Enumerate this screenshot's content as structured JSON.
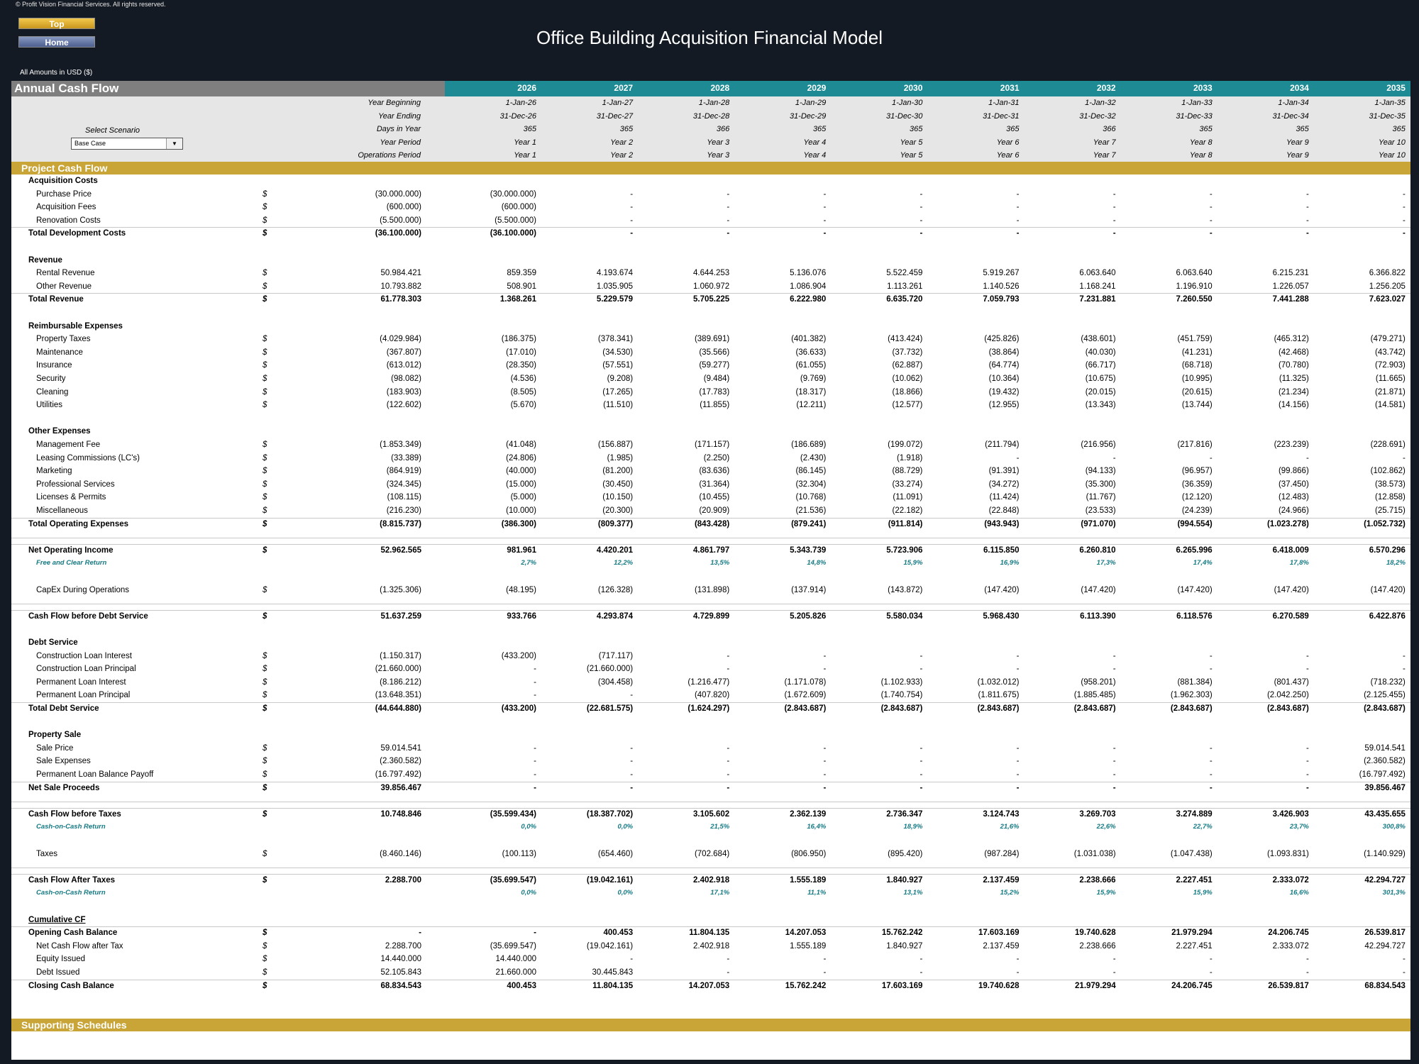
{
  "copyright": "© Profit Vision Financial Services. All rights reserved.",
  "nav": {
    "top": "Top",
    "home": "Home"
  },
  "title": "Office Building Acquisition Financial Model",
  "amounts_note": "All Amounts in  USD ($)",
  "sheet_title": "Annual Cash Flow",
  "years": [
    "2026",
    "2027",
    "2028",
    "2029",
    "2030",
    "2031",
    "2032",
    "2033",
    "2034",
    "2035"
  ],
  "scenario": {
    "label": "Select Scenario",
    "value": "Base Case"
  },
  "header_rows": [
    {
      "label": "Year Beginning",
      "cols": [
        "1-Jan-26",
        "1-Jan-27",
        "1-Jan-28",
        "1-Jan-29",
        "1-Jan-30",
        "1-Jan-31",
        "1-Jan-32",
        "1-Jan-33",
        "1-Jan-34",
        "1-Jan-35"
      ]
    },
    {
      "label": "Year Ending",
      "cols": [
        "31-Dec-26",
        "31-Dec-27",
        "31-Dec-28",
        "31-Dec-29",
        "31-Dec-30",
        "31-Dec-31",
        "31-Dec-32",
        "31-Dec-33",
        "31-Dec-34",
        "31-Dec-35"
      ]
    },
    {
      "label": "Days in Year",
      "cols": [
        "365",
        "365",
        "366",
        "365",
        "365",
        "365",
        "366",
        "365",
        "365",
        "365"
      ]
    },
    {
      "label": "Year Period",
      "cols": [
        "Year 1",
        "Year 2",
        "Year 3",
        "Year 4",
        "Year 5",
        "Year 6",
        "Year 7",
        "Year 8",
        "Year 9",
        "Year 10"
      ]
    },
    {
      "label": "Operations Period",
      "cols": [
        "Year 1",
        "Year 2",
        "Year 3",
        "Year 4",
        "Year 5",
        "Year 6",
        "Year 7",
        "Year 8",
        "Year 9",
        "Year 10"
      ]
    }
  ],
  "section_project": "Project Cash Flow",
  "section_supporting": "Supporting Schedules",
  "rows": [
    {
      "type": "heading",
      "label": "Acquisition Costs"
    },
    {
      "type": "item",
      "label": "Purchase Price",
      "unit": "$",
      "total": "(30.000.000)",
      "cols": [
        "(30.000.000)",
        "-",
        "-",
        "-",
        "-",
        "-",
        "-",
        "-",
        "-",
        "-"
      ]
    },
    {
      "type": "item",
      "label": "Acquisition Fees",
      "unit": "$",
      "total": "(600.000)",
      "cols": [
        "(600.000)",
        "-",
        "-",
        "-",
        "-",
        "-",
        "-",
        "-",
        "-",
        "-"
      ]
    },
    {
      "type": "item",
      "label": "Renovation Costs",
      "unit": "$",
      "total": "(5.500.000)",
      "cols": [
        "(5.500.000)",
        "-",
        "-",
        "-",
        "-",
        "-",
        "-",
        "-",
        "-",
        "-"
      ]
    },
    {
      "type": "total",
      "label": "Total Development Costs",
      "unit": "$",
      "total": "(36.100.000)",
      "cols": [
        "(36.100.000)",
        "-",
        "-",
        "-",
        "-",
        "-",
        "-",
        "-",
        "-",
        "-"
      ]
    },
    {
      "type": "blank"
    },
    {
      "type": "heading",
      "label": "Revenue"
    },
    {
      "type": "item",
      "label": "Rental Revenue",
      "unit": "$",
      "total": "50.984.421",
      "cols": [
        "859.359",
        "4.193.674",
        "4.644.253",
        "5.136.076",
        "5.522.459",
        "5.919.267",
        "6.063.640",
        "6.063.640",
        "6.215.231",
        "6.366.822"
      ]
    },
    {
      "type": "item",
      "label": "Other Revenue",
      "unit": "$",
      "total": "10.793.882",
      "cols": [
        "508.901",
        "1.035.905",
        "1.060.972",
        "1.086.904",
        "1.113.261",
        "1.140.526",
        "1.168.241",
        "1.196.910",
        "1.226.057",
        "1.256.205"
      ]
    },
    {
      "type": "total",
      "label": "Total Revenue",
      "unit": "$",
      "total": "61.778.303",
      "cols": [
        "1.368.261",
        "5.229.579",
        "5.705.225",
        "6.222.980",
        "6.635.720",
        "7.059.793",
        "7.231.881",
        "7.260.550",
        "7.441.288",
        "7.623.027"
      ]
    },
    {
      "type": "blank"
    },
    {
      "type": "heading",
      "label": "Reimbursable Expenses"
    },
    {
      "type": "item",
      "label": "Property Taxes",
      "unit": "$",
      "total": "(4.029.984)",
      "cols": [
        "(186.375)",
        "(378.341)",
        "(389.691)",
        "(401.382)",
        "(413.424)",
        "(425.826)",
        "(438.601)",
        "(451.759)",
        "(465.312)",
        "(479.271)"
      ]
    },
    {
      "type": "item",
      "label": "Maintenance",
      "unit": "$",
      "total": "(367.807)",
      "cols": [
        "(17.010)",
        "(34.530)",
        "(35.566)",
        "(36.633)",
        "(37.732)",
        "(38.864)",
        "(40.030)",
        "(41.231)",
        "(42.468)",
        "(43.742)"
      ]
    },
    {
      "type": "item",
      "label": "Insurance",
      "unit": "$",
      "total": "(613.012)",
      "cols": [
        "(28.350)",
        "(57.551)",
        "(59.277)",
        "(61.055)",
        "(62.887)",
        "(64.774)",
        "(66.717)",
        "(68.718)",
        "(70.780)",
        "(72.903)"
      ]
    },
    {
      "type": "item",
      "label": "Security",
      "unit": "$",
      "total": "(98.082)",
      "cols": [
        "(4.536)",
        "(9.208)",
        "(9.484)",
        "(9.769)",
        "(10.062)",
        "(10.364)",
        "(10.675)",
        "(10.995)",
        "(11.325)",
        "(11.665)"
      ]
    },
    {
      "type": "item",
      "label": "Cleaning",
      "unit": "$",
      "total": "(183.903)",
      "cols": [
        "(8.505)",
        "(17.265)",
        "(17.783)",
        "(18.317)",
        "(18.866)",
        "(19.432)",
        "(20.015)",
        "(20.615)",
        "(21.234)",
        "(21.871)"
      ]
    },
    {
      "type": "item",
      "label": "Utilities",
      "unit": "$",
      "total": "(122.602)",
      "cols": [
        "(5.670)",
        "(11.510)",
        "(11.855)",
        "(12.211)",
        "(12.577)",
        "(12.955)",
        "(13.343)",
        "(13.744)",
        "(14.156)",
        "(14.581)"
      ]
    },
    {
      "type": "blank"
    },
    {
      "type": "heading",
      "label": "Other Expenses"
    },
    {
      "type": "item",
      "label": "Management Fee",
      "unit": "$",
      "total": "(1.853.349)",
      "cols": [
        "(41.048)",
        "(156.887)",
        "(171.157)",
        "(186.689)",
        "(199.072)",
        "(211.794)",
        "(216.956)",
        "(217.816)",
        "(223.239)",
        "(228.691)"
      ]
    },
    {
      "type": "item",
      "label": "Leasing Commissions (LC's)",
      "unit": "$",
      "total": "(33.389)",
      "cols": [
        "(24.806)",
        "(1.985)",
        "(2.250)",
        "(2.430)",
        "(1.918)",
        "-",
        "-",
        "-",
        "-",
        "-"
      ]
    },
    {
      "type": "item",
      "label": "Marketing",
      "unit": "$",
      "total": "(864.919)",
      "cols": [
        "(40.000)",
        "(81.200)",
        "(83.636)",
        "(86.145)",
        "(88.729)",
        "(91.391)",
        "(94.133)",
        "(96.957)",
        "(99.866)",
        "(102.862)"
      ]
    },
    {
      "type": "item",
      "label": "Professional Services",
      "unit": "$",
      "total": "(324.345)",
      "cols": [
        "(15.000)",
        "(30.450)",
        "(31.364)",
        "(32.304)",
        "(33.274)",
        "(34.272)",
        "(35.300)",
        "(36.359)",
        "(37.450)",
        "(38.573)"
      ]
    },
    {
      "type": "item",
      "label": "Licenses & Permits",
      "unit": "$",
      "total": "(108.115)",
      "cols": [
        "(5.000)",
        "(10.150)",
        "(10.455)",
        "(10.768)",
        "(11.091)",
        "(11.424)",
        "(11.767)",
        "(12.120)",
        "(12.483)",
        "(12.858)"
      ]
    },
    {
      "type": "item",
      "label": "Miscellaneous",
      "unit": "$",
      "total": "(216.230)",
      "cols": [
        "(10.000)",
        "(20.300)",
        "(20.909)",
        "(21.536)",
        "(22.182)",
        "(22.848)",
        "(23.533)",
        "(24.239)",
        "(24.966)",
        "(25.715)"
      ]
    },
    {
      "type": "total",
      "label": "Total Operating Expenses",
      "unit": "$",
      "total": "(8.815.737)",
      "cols": [
        "(386.300)",
        "(809.377)",
        "(843.428)",
        "(879.241)",
        "(911.814)",
        "(943.943)",
        "(971.070)",
        "(994.554)",
        "(1.023.278)",
        "(1.052.732)"
      ]
    },
    {
      "type": "blank",
      "rule": true
    },
    {
      "type": "total",
      "label": "Net Operating Income",
      "unit": "$",
      "total": "52.962.565",
      "cols": [
        "981.961",
        "4.420.201",
        "4.861.797",
        "5.343.739",
        "5.723.906",
        "6.115.850",
        "6.260.810",
        "6.265.996",
        "6.418.009",
        "6.570.296"
      ]
    },
    {
      "type": "pct",
      "label": "Free and Clear Return",
      "cols": [
        "2,7%",
        "12,2%",
        "13,5%",
        "14,8%",
        "15,9%",
        "16,9%",
        "17,3%",
        "17,4%",
        "17,8%",
        "18,2%"
      ]
    },
    {
      "type": "blank"
    },
    {
      "type": "item",
      "label": "CapEx During Operations",
      "unit": "$",
      "total": "(1.325.306)",
      "cols": [
        "(48.195)",
        "(126.328)",
        "(131.898)",
        "(137.914)",
        "(143.872)",
        "(147.420)",
        "(147.420)",
        "(147.420)",
        "(147.420)",
        "(147.420)"
      ]
    },
    {
      "type": "blank",
      "rule": true
    },
    {
      "type": "total",
      "label": "Cash Flow before Debt Service",
      "unit": "$",
      "total": "51.637.259",
      "cols": [
        "933.766",
        "4.293.874",
        "4.729.899",
        "5.205.826",
        "5.580.034",
        "5.968.430",
        "6.113.390",
        "6.118.576",
        "6.270.589",
        "6.422.876"
      ]
    },
    {
      "type": "blank"
    },
    {
      "type": "heading",
      "label": "Debt Service"
    },
    {
      "type": "item",
      "label": "Construction Loan Interest",
      "unit": "$",
      "total": "(1.150.317)",
      "cols": [
        "(433.200)",
        "(717.117)",
        "-",
        "-",
        "-",
        "-",
        "-",
        "-",
        "-",
        "-"
      ]
    },
    {
      "type": "item",
      "label": "Construction Loan Principal",
      "unit": "$",
      "total": "(21.660.000)",
      "cols": [
        "-",
        "(21.660.000)",
        "-",
        "-",
        "-",
        "-",
        "-",
        "-",
        "-",
        "-"
      ]
    },
    {
      "type": "item",
      "label": "Permanent Loan Interest",
      "unit": "$",
      "total": "(8.186.212)",
      "cols": [
        "-",
        "(304.458)",
        "(1.216.477)",
        "(1.171.078)",
        "(1.102.933)",
        "(1.032.012)",
        "(958.201)",
        "(881.384)",
        "(801.437)",
        "(718.232)"
      ]
    },
    {
      "type": "item",
      "label": "Permanent Loan Principal",
      "unit": "$",
      "total": "(13.648.351)",
      "cols": [
        "-",
        "-",
        "(407.820)",
        "(1.672.609)",
        "(1.740.754)",
        "(1.811.675)",
        "(1.885.485)",
        "(1.962.303)",
        "(2.042.250)",
        "(2.125.455)"
      ]
    },
    {
      "type": "total",
      "label": "Total Debt Service",
      "unit": "$",
      "total": "(44.644.880)",
      "cols": [
        "(433.200)",
        "(22.681.575)",
        "(1.624.297)",
        "(2.843.687)",
        "(2.843.687)",
        "(2.843.687)",
        "(2.843.687)",
        "(2.843.687)",
        "(2.843.687)",
        "(2.843.687)"
      ]
    },
    {
      "type": "blank"
    },
    {
      "type": "heading",
      "label": "Property Sale"
    },
    {
      "type": "item",
      "label": "Sale Price",
      "unit": "$",
      "total": "59.014.541",
      "cols": [
        "-",
        "-",
        "-",
        "-",
        "-",
        "-",
        "-",
        "-",
        "-",
        "59.014.541"
      ]
    },
    {
      "type": "item",
      "label": "Sale Expenses",
      "unit": "$",
      "total": "(2.360.582)",
      "cols": [
        "-",
        "-",
        "-",
        "-",
        "-",
        "-",
        "-",
        "-",
        "-",
        "(2.360.582)"
      ]
    },
    {
      "type": "item",
      "label": "Permanent Loan Balance Payoff",
      "unit": "$",
      "total": "(16.797.492)",
      "cols": [
        "-",
        "-",
        "-",
        "-",
        "-",
        "-",
        "-",
        "-",
        "-",
        "(16.797.492)"
      ]
    },
    {
      "type": "total",
      "label": "Net Sale Proceeds",
      "unit": "$",
      "total": "39.856.467",
      "cols": [
        "-",
        "-",
        "-",
        "-",
        "-",
        "-",
        "-",
        "-",
        "-",
        "39.856.467"
      ]
    },
    {
      "type": "blank",
      "rule": true
    },
    {
      "type": "total",
      "label": "Cash Flow before Taxes",
      "unit": "$",
      "total": "10.748.846",
      "cols": [
        "(35.599.434)",
        "(18.387.702)",
        "3.105.602",
        "2.362.139",
        "2.736.347",
        "3.124.743",
        "3.269.703",
        "3.274.889",
        "3.426.903",
        "43.435.655"
      ]
    },
    {
      "type": "pct",
      "label": "Cash-on-Cash Return",
      "cols": [
        "0,0%",
        "0,0%",
        "21,5%",
        "16,4%",
        "18,9%",
        "21,6%",
        "22,6%",
        "22,7%",
        "23,7%",
        "300,8%"
      ]
    },
    {
      "type": "blank"
    },
    {
      "type": "item",
      "label": "Taxes",
      "unit": "$",
      "total": "(8.460.146)",
      "cols": [
        "(100.113)",
        "(654.460)",
        "(702.684)",
        "(806.950)",
        "(895.420)",
        "(987.284)",
        "(1.031.038)",
        "(1.047.438)",
        "(1.093.831)",
        "(1.140.929)"
      ]
    },
    {
      "type": "blank",
      "rule": true
    },
    {
      "type": "total",
      "label": "Cash Flow After Taxes",
      "unit": "$",
      "total": "2.288.700",
      "cols": [
        "(35.699.547)",
        "(19.042.161)",
        "2.402.918",
        "1.555.189",
        "1.840.927",
        "2.137.459",
        "2.238.666",
        "2.227.451",
        "2.333.072",
        "42.294.727"
      ]
    },
    {
      "type": "pct",
      "label": "Cash-on-Cash Return",
      "cols": [
        "0,0%",
        "0,0%",
        "17,1%",
        "11,1%",
        "13,1%",
        "15,2%",
        "15,9%",
        "15,9%",
        "16,6%",
        "301,3%"
      ]
    },
    {
      "type": "blank"
    },
    {
      "type": "heading",
      "label": "Cumulative CF",
      "underline": true
    },
    {
      "type": "total",
      "label": "Opening Cash Balance",
      "unit": "$",
      "total": "-",
      "cols": [
        "-",
        "400.453",
        "11.804.135",
        "14.207.053",
        "15.762.242",
        "17.603.169",
        "19.740.628",
        "21.979.294",
        "24.206.745",
        "26.539.817"
      ]
    },
    {
      "type": "item",
      "label": "Net Cash Flow after Tax",
      "unit": "$",
      "total": "2.288.700",
      "cols": [
        "(35.699.547)",
        "(19.042.161)",
        "2.402.918",
        "1.555.189",
        "1.840.927",
        "2.137.459",
        "2.238.666",
        "2.227.451",
        "2.333.072",
        "42.294.727"
      ]
    },
    {
      "type": "item",
      "label": "Equity Issued",
      "unit": "$",
      "total": "14.440.000",
      "cols": [
        "14.440.000",
        "-",
        "-",
        "-",
        "-",
        "-",
        "-",
        "-",
        "-",
        "-"
      ]
    },
    {
      "type": "item",
      "label": "Debt Issued",
      "unit": "$",
      "total": "52.105.843",
      "cols": [
        "21.660.000",
        "30.445.843",
        "-",
        "-",
        "-",
        "-",
        "-",
        "-",
        "-",
        "-"
      ]
    },
    {
      "type": "total",
      "label": "Closing Cash Balance",
      "unit": "$",
      "total": "68.834.543",
      "cols": [
        "400.453",
        "11.804.135",
        "14.207.053",
        "15.762.242",
        "17.603.169",
        "19.740.628",
        "21.979.294",
        "24.206.745",
        "26.539.817",
        "68.834.543"
      ]
    }
  ]
}
